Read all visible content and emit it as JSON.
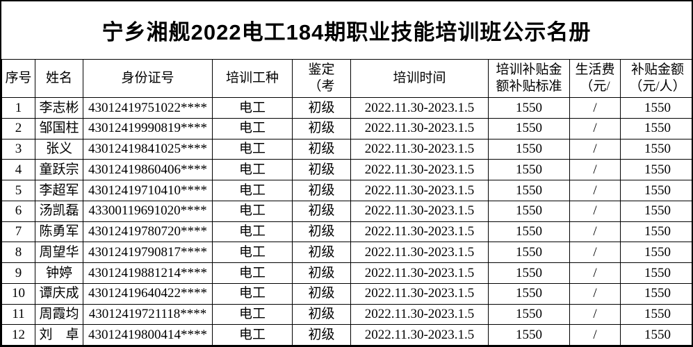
{
  "title": "宁乡湘舰2022电工184期职业技能培训班公示名册",
  "table": {
    "columns": [
      {
        "key": "index",
        "label": "序号"
      },
      {
        "key": "name",
        "label": "姓名"
      },
      {
        "key": "id_number",
        "label": "身份证号"
      },
      {
        "key": "training_trade",
        "label": "培训工种"
      },
      {
        "key": "assessment",
        "label": "鉴定\n（考"
      },
      {
        "key": "training_time",
        "label": "培训时间"
      },
      {
        "key": "subsidy_standard",
        "label": "培训补贴金\n额补贴标准"
      },
      {
        "key": "living_expense",
        "label": "生活费\n（元/"
      },
      {
        "key": "subsidy_amount",
        "label": "补贴金额\n（元/人）"
      }
    ],
    "rows": [
      [
        "1",
        "李志彬",
        "43012419751022****",
        "电工",
        "初级",
        "2022.11.30-2023.1.5",
        "1550",
        "/",
        "1550"
      ],
      [
        "2",
        "邹国柱",
        "43012419990819****",
        "电工",
        "初级",
        "2022.11.30-2023.1.5",
        "1550",
        "/",
        "1550"
      ],
      [
        "3",
        "张义",
        "43012419841025****",
        "电工",
        "初级",
        "2022.11.30-2023.1.5",
        "1550",
        "/",
        "1550"
      ],
      [
        "4",
        "童跃宗",
        "43012419860406****",
        "电工",
        "初级",
        "2022.11.30-2023.1.5",
        "1550",
        "/",
        "1550"
      ],
      [
        "5",
        "李超军",
        "43012419710410****",
        "电工",
        "初级",
        "2022.11.30-2023.1.5",
        "1550",
        "/",
        "1550"
      ],
      [
        "6",
        "汤凯磊",
        "43300119691020****",
        "电工",
        "初级",
        "2022.11.30-2023.1.5",
        "1550",
        "/",
        "1550"
      ],
      [
        "7",
        "陈勇军",
        "43012419780720****",
        "电工",
        "初级",
        "2022.11.30-2023.1.5",
        "1550",
        "/",
        "1550"
      ],
      [
        "8",
        "周望华",
        "43012419790817****",
        "电工",
        "初级",
        "2022.11.30-2023.1.5",
        "1550",
        "/",
        "1550"
      ],
      [
        "9",
        "钟婷",
        "43012419881214****",
        "电工",
        "初级",
        "2022.11.30-2023.1.5",
        "1550",
        "/",
        "1550"
      ],
      [
        "10",
        "谭庆成",
        "43012419640422****",
        "电工",
        "初级",
        "2022.11.30-2023.1.5",
        "1550",
        "/",
        "1550"
      ],
      [
        "11",
        "周霞均",
        "43012419721118****",
        "电工",
        "初级",
        "2022.11.30-2023.1.5",
        "1550",
        "/",
        "1550"
      ],
      [
        "12",
        "刘　卓",
        "43012419800414****",
        "电工",
        "初级",
        "2022.11.30-2023.1.5",
        "1550",
        "/",
        "1550"
      ]
    ]
  }
}
